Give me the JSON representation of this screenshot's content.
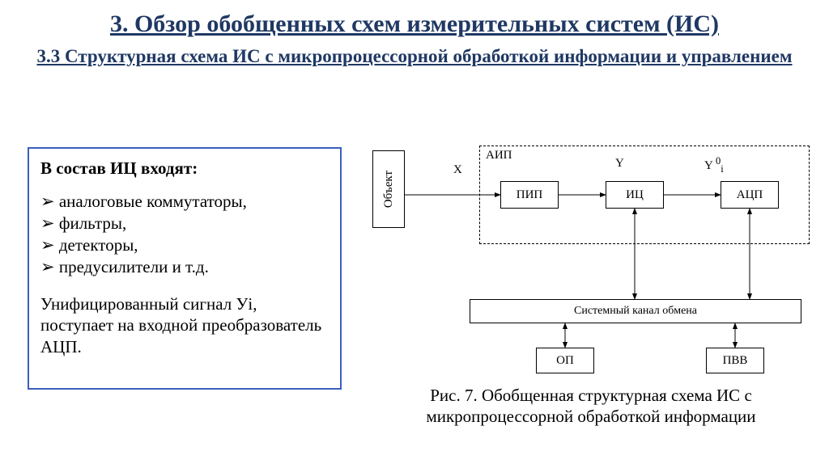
{
  "title_main": "3. Обзор обобщенных схем измерительных систем (ИС)",
  "title_sub": "3.3 Структурная схема ИС с микропроцессорной обработкой информации и управлением",
  "leftbox": {
    "heading": "В состав ИЦ входят:",
    "items": [
      "аналоговые коммутаторы,",
      "фильтры,",
      "детекторы,",
      "предусилители и т.д."
    ],
    "para": "Унифицированный сигнал Уi, поступает на входной преобразователь АЦП."
  },
  "diagram": {
    "aip_label": "АИП",
    "x_label": "X",
    "y_label": "Y",
    "y0i_label_html": "Y <sup>0</sup><sub>i</sub>",
    "nodes": {
      "object": "Объект",
      "pip": "ПИП",
      "ic": "ИЦ",
      "acp": "АЦП",
      "bus": "Системный канал обмена",
      "op": "ОП",
      "pvv": "ПВВ"
    },
    "colors": {
      "stroke": "#000000",
      "frame": "#3b5fbf",
      "heading": "#1f3864",
      "bg": "#ffffff"
    }
  },
  "caption": "Рис. 7. Обобщенная структурная схема ИС с микропроцессорной обработкой информации"
}
